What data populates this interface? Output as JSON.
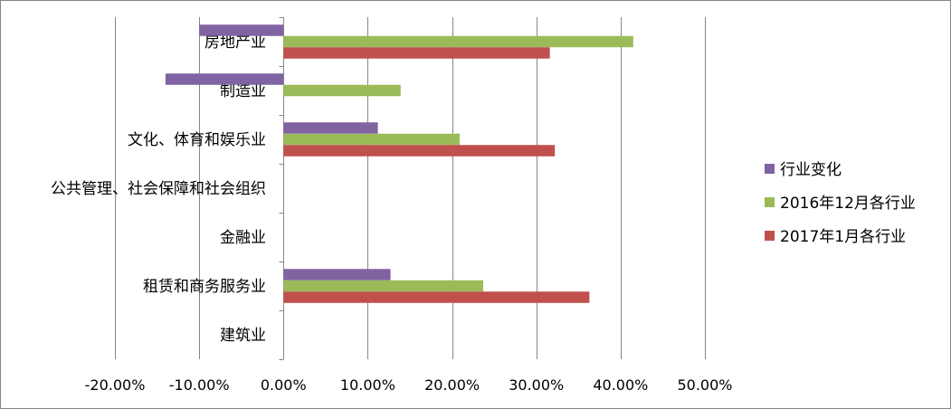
{
  "chart_data": {
    "type": "bar",
    "orientation": "horizontal",
    "categories": [
      "房地产业",
      "制造业",
      "文化、体育和娱乐业",
      "公共管理、社会保障和社会组织",
      "金融业",
      "租赁和商务服务业",
      "建筑业"
    ],
    "series": [
      {
        "name": "行业变化",
        "color": "#8064A2",
        "values": [
          -10.0,
          -14.0,
          11.2,
          0,
          0,
          12.7,
          0
        ]
      },
      {
        "name": "2016年12月各行业",
        "color": "#9BBB59",
        "values": [
          41.5,
          13.9,
          20.9,
          0,
          0,
          23.7,
          0
        ]
      },
      {
        "name": "2017年1月各行业",
        "color": "#C0504D",
        "values": [
          31.6,
          0,
          32.2,
          0,
          0,
          36.3,
          0
        ]
      }
    ],
    "xlim": [
      -20,
      50
    ],
    "xticks": [
      "-20.00%",
      "-10.00%",
      "0.00%",
      "10.00%",
      "20.00%",
      "30.00%",
      "40.00%",
      "50.00%"
    ],
    "legend": {
      "position": "right",
      "order": [
        "行业变化",
        "2016年12月各行业",
        "2017年1月各行业"
      ]
    },
    "grid": "vertical"
  }
}
